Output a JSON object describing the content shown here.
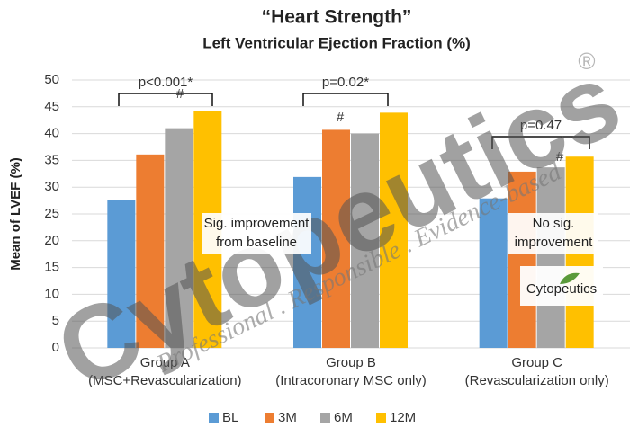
{
  "chart_data": {
    "type": "bar",
    "title": "“Heart Strength”",
    "subtitle": "Left Ventricular Ejection Fraction  (%)",
    "y_label": "Mean of LVEF (%)",
    "categories": [
      "Group A",
      "Group B",
      "Group C"
    ],
    "category_sublabels": [
      "(MSC+Revascularization)",
      "(Intracoronary MSC only)",
      "(Revascularization only)"
    ],
    "series": [
      {
        "name": "BL",
        "color": "#5b9bd5",
        "values": [
          27.6,
          31.9,
          27.9
        ]
      },
      {
        "name": "3M",
        "color": "#ed7d31",
        "values": [
          36.1,
          40.7,
          32.9
        ]
      },
      {
        "name": "6M",
        "color": "#a5a5a5",
        "values": [
          41.0,
          40.0,
          33.7
        ]
      },
      {
        "name": "12M",
        "color": "#ffc000",
        "values": [
          44.2,
          43.9,
          35.7
        ]
      }
    ],
    "ylim": [
      0,
      50
    ],
    "yticks": [
      0,
      5,
      10,
      15,
      20,
      25,
      30,
      35,
      40,
      45,
      50
    ],
    "grid": true,
    "legend": "bottom",
    "p_values": [
      "p<0.001*",
      "p=0.02*",
      "p=0.47"
    ],
    "markers": [
      "#",
      "#",
      "#"
    ],
    "notes": [
      [
        "Sig. improvement",
        "from baseline"
      ],
      [
        "No sig.",
        "improvement"
      ]
    ],
    "watermark": "Cytopeutics",
    "watermark_tagline": "Professional . Responsible . Evidence-based",
    "registered": "®",
    "logo": "Cytopeutics"
  }
}
